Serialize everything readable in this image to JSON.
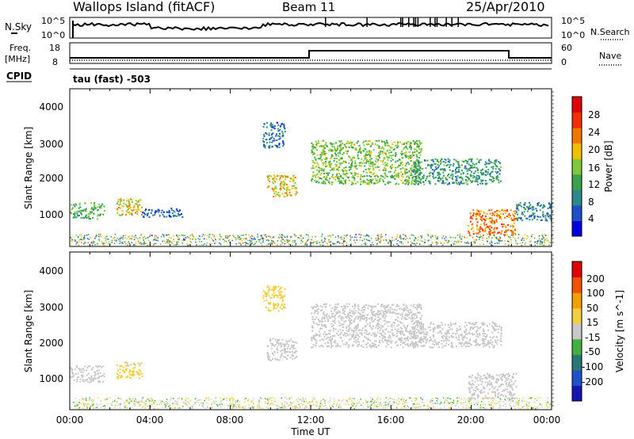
{
  "header": {
    "station": "Wallops Island (fitACF)",
    "beam": "Beam 11",
    "date": "25/Apr/2010"
  },
  "labels": {
    "nsky": "N.Sky",
    "nsearch": "N.Search",
    "freq_line1": "Freq.",
    "freq_line2": "[MHz]",
    "nave": "Nave",
    "cpid": "CPID",
    "cpid_text": "tau (fast) -503"
  },
  "noise_panel": {
    "ytick_top": "10^5",
    "ytick_bottom": "10^0",
    "ytick_top_right": "10^5",
    "ytick_bottom_right": "10^0"
  },
  "freq_panel": {
    "left_ticks": [
      "18",
      "8"
    ],
    "right_ticks": [
      "60",
      "0"
    ]
  },
  "colors": {
    "power_scale": [
      "#0000e0",
      "#1f50c8",
      "#2a8a8a",
      "#3aa24a",
      "#7ec83a",
      "#f0c000",
      "#f07800",
      "#f03000",
      "#e00000"
    ],
    "velocity_scale": [
      "#1414b4",
      "#1e50c8",
      "#287878",
      "#40b040",
      "#c8c8c8",
      "#f0d040",
      "#f0a000",
      "#f05000",
      "#e00000"
    ]
  },
  "chart_data": [
    {
      "type": "heatmap",
      "title": "Power",
      "xlabel": "",
      "ylabel": "Slant Range [km]",
      "yticks": [
        "1000",
        "2000",
        "3000",
        "4000"
      ],
      "ylim": [
        180,
        4500
      ],
      "xticks": [
        "00:00",
        "04:00",
        "08:00",
        "12:00",
        "16:00",
        "20:00",
        "00:00"
      ],
      "xlim_hours": [
        0,
        24
      ],
      "colorbar": {
        "label": "Power [dB]",
        "ticks": [
          "4",
          "8",
          "12",
          "16",
          "20",
          "24",
          "28"
        ],
        "range": [
          0,
          30
        ]
      },
      "echo_regions": [
        {
          "name": "early-arc",
          "t_start": 0.0,
          "t_end": 1.7,
          "range_start": 950,
          "range_end": 1400,
          "value": 12
        },
        {
          "name": "blob-0330",
          "t_start": 2.3,
          "t_end": 3.6,
          "range_start": 1050,
          "range_end": 1500,
          "value": 18
        },
        {
          "name": "blob-0500",
          "t_start": 3.6,
          "t_end": 5.6,
          "range_start": 1000,
          "range_end": 1250,
          "value": 6
        },
        {
          "name": "band-1030",
          "t_start": 9.8,
          "t_end": 11.3,
          "range_start": 1550,
          "range_end": 2150,
          "value": 18
        },
        {
          "name": "upper-1030",
          "t_start": 9.6,
          "t_end": 10.7,
          "range_start": 2900,
          "range_end": 3600,
          "value": 7
        },
        {
          "name": "main-1230-1700",
          "t_start": 12.0,
          "t_end": 17.5,
          "range_start": 1900,
          "range_end": 3100,
          "value": 14
        },
        {
          "name": "band-1700-2130",
          "t_start": 17.0,
          "t_end": 21.5,
          "range_start": 1900,
          "range_end": 2600,
          "value": 10
        },
        {
          "name": "descending-2000",
          "t_start": 19.8,
          "t_end": 22.2,
          "range_start": 500,
          "range_end": 1200,
          "value": 22
        },
        {
          "name": "late-2200",
          "t_start": 22.2,
          "t_end": 24.0,
          "range_start": 900,
          "range_end": 1400,
          "value": 8
        }
      ]
    },
    {
      "type": "heatmap",
      "title": "Velocity",
      "xlabel": "Time UT",
      "ylabel": "Slant Range [km]",
      "yticks": [
        "1000",
        "2000",
        "3000",
        "4000"
      ],
      "ylim": [
        180,
        4500
      ],
      "xticks": [
        "00:00",
        "04:00",
        "08:00",
        "12:00",
        "16:00",
        "20:00",
        "00:00"
      ],
      "xlim_hours": [
        0,
        24
      ],
      "colorbar": {
        "label": "Velocity [m s^-1]",
        "ticks": [
          "200",
          "100",
          "50",
          "15",
          "-15",
          "-50",
          "-100",
          "-200"
        ],
        "range": [
          -250,
          250
        ]
      },
      "echo_regions": [
        {
          "name": "early-arc",
          "t_start": 0.0,
          "t_end": 1.7,
          "range_start": 950,
          "range_end": 1400,
          "value": 0
        },
        {
          "name": "blob-0330",
          "t_start": 2.3,
          "t_end": 3.6,
          "range_start": 1050,
          "range_end": 1500,
          "value": 35
        },
        {
          "name": "band-1030",
          "t_start": 9.8,
          "t_end": 11.3,
          "range_start": 1550,
          "range_end": 2150,
          "value": 0
        },
        {
          "name": "upper-1030",
          "t_start": 9.6,
          "t_end": 10.7,
          "range_start": 2900,
          "range_end": 3600,
          "value": 40
        },
        {
          "name": "main-1230-1700",
          "t_start": 12.0,
          "t_end": 17.5,
          "range_start": 1900,
          "range_end": 3100,
          "value": 0
        },
        {
          "name": "band-1700-2130",
          "t_start": 17.0,
          "t_end": 21.5,
          "range_start": 1900,
          "range_end": 2600,
          "value": 0
        },
        {
          "name": "descending-2000",
          "t_start": 19.8,
          "t_end": 22.2,
          "range_start": 500,
          "range_end": 1200,
          "value": 0
        }
      ]
    }
  ]
}
